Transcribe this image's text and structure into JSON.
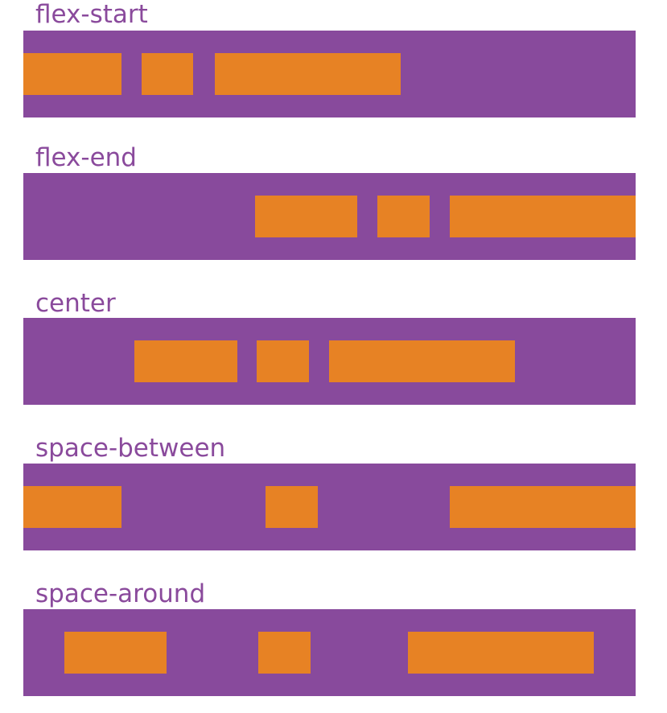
{
  "colors": {
    "container": "#884a9c",
    "item": "#e78224",
    "label": "#8a4a9c",
    "background": "#ffffff"
  },
  "rows": [
    {
      "label": "flex-start"
    },
    {
      "label": "flex-end"
    },
    {
      "label": "center"
    },
    {
      "label": "space-between"
    },
    {
      "label": "space-around"
    }
  ]
}
